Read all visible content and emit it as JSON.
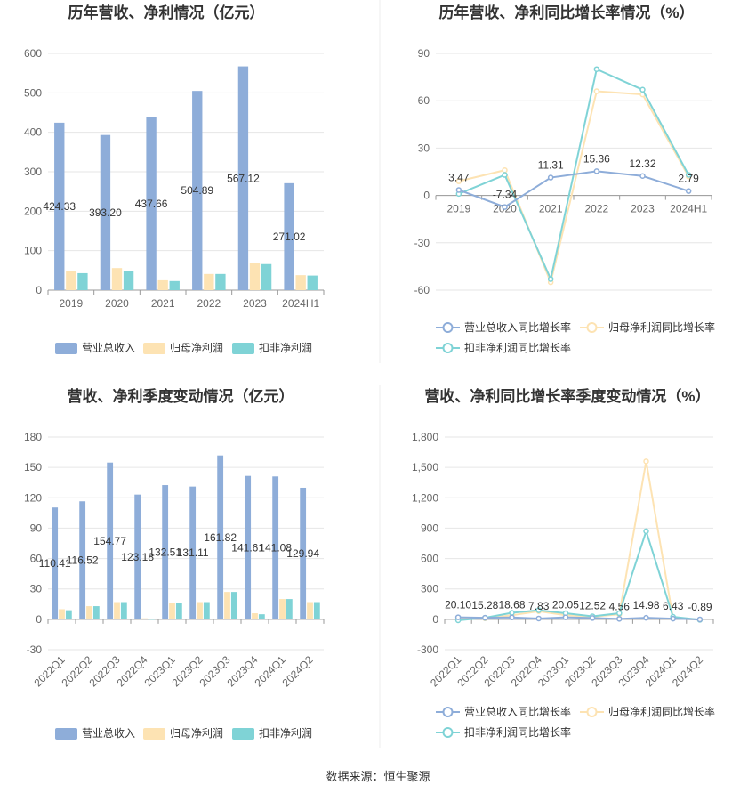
{
  "colors": {
    "revenue": "#8eadd9",
    "parent_profit": "#fde3b3",
    "nonrecurring_profit": "#7fd3d6",
    "revenue_line": "#8eadd9",
    "parent_line": "#fde3b3",
    "nonrecurring_line": "#7fd3d6",
    "grid": "#e6e6e6",
    "axis": "#999999",
    "tick_text": "#666666",
    "title_text": "#333333"
  },
  "legend_labels": {
    "bar": [
      "营业总收入",
      "归母净利润",
      "扣非净利润"
    ],
    "line": [
      "营业总收入同比增长率",
      "归母净利润同比增长率",
      "扣非净利润同比增长率"
    ]
  },
  "source_text": "数据来源：恒生聚源",
  "chart_data": [
    {
      "id": "annual-amounts",
      "type": "bar",
      "title": "历年营收、净利情况（亿元）",
      "categories": [
        "2019",
        "2020",
        "2021",
        "2022",
        "2023",
        "2024H1"
      ],
      "ylim": [
        0,
        600
      ],
      "yticks": [
        0,
        100,
        200,
        300,
        400,
        500,
        600
      ],
      "ytick_labels": [
        "0",
        "100",
        "200",
        "300",
        "400",
        "500",
        "600"
      ],
      "grid": true,
      "legend_position": "bottom",
      "series": [
        {
          "name": "营业总收入",
          "values": [
            424.33,
            393.2,
            437.66,
            504.89,
            567.12,
            271.02
          ],
          "labels": [
            "424.33",
            "393.20",
            "437.66",
            "504.89",
            "567.12",
            "271.02"
          ]
        },
        {
          "name": "归母净利润",
          "values": [
            48,
            56,
            25,
            41,
            68,
            38
          ]
        },
        {
          "name": "扣非净利润",
          "values": [
            43,
            49,
            23,
            41,
            66,
            37
          ]
        }
      ]
    },
    {
      "id": "annual-growth",
      "type": "line",
      "title": "历年营收、净利同比增长率情况（%）",
      "categories": [
        "2019",
        "2020",
        "2021",
        "2022",
        "2023",
        "2024H1"
      ],
      "ylim": [
        -60,
        90
      ],
      "yticks": [
        -60,
        -30,
        0,
        30,
        60,
        90
      ],
      "ytick_labels": [
        "-60",
        "-30",
        "0",
        "30",
        "60",
        "90"
      ],
      "grid": true,
      "legend_position": "bottom",
      "series": [
        {
          "name": "营业总收入同比增长率",
          "values": [
            3.47,
            -7.34,
            11.31,
            15.36,
            12.32,
            2.79
          ],
          "labels": [
            "3.47",
            "-7.34",
            "11.31",
            "15.36",
            "12.32",
            "2.79"
          ]
        },
        {
          "name": "归母净利润同比增长率",
          "values": [
            9,
            16,
            -55,
            66,
            64,
            12
          ]
        },
        {
          "name": "扣非净利润同比增长率",
          "values": [
            1,
            13,
            -53,
            80,
            67,
            13
          ]
        }
      ]
    },
    {
      "id": "quarterly-amounts",
      "type": "bar",
      "title": "营收、净利季度变动情况（亿元）",
      "categories": [
        "2022Q1",
        "2022Q2",
        "2022Q3",
        "2022Q4",
        "2023Q1",
        "2023Q2",
        "2023Q3",
        "2023Q4",
        "2024Q1",
        "2024Q2"
      ],
      "ylim": [
        -30,
        180
      ],
      "yticks": [
        -30,
        0,
        30,
        60,
        90,
        120,
        150,
        180
      ],
      "ytick_labels": [
        "-30",
        "0",
        "30",
        "60",
        "90",
        "120",
        "150",
        "180"
      ],
      "grid": true,
      "legend_position": "bottom",
      "series": [
        {
          "name": "营业总收入",
          "values": [
            110.41,
            116.52,
            154.77,
            123.18,
            132.51,
            131.11,
            161.82,
            141.61,
            141.08,
            129.94
          ],
          "labels": [
            "110.41",
            "116.52",
            "154.77",
            "123.18",
            "132.51",
            "131.11",
            "161.82",
            "141.61",
            "141.08",
            "129.94"
          ]
        },
        {
          "name": "归母净利润",
          "values": [
            10,
            13,
            17,
            1,
            16,
            17,
            27,
            6,
            20,
            17
          ]
        },
        {
          "name": "扣非净利润",
          "values": [
            9,
            13,
            17,
            0,
            16,
            17,
            27,
            5,
            20,
            17
          ]
        }
      ]
    },
    {
      "id": "quarterly-growth",
      "type": "line",
      "title": "营收、净利同比增长率季度变动情况（%）",
      "categories": [
        "2022Q1",
        "2022Q2",
        "2022Q3",
        "2022Q4",
        "2023Q1",
        "2023Q2",
        "2023Q3",
        "2023Q4",
        "2024Q1",
        "2024Q2"
      ],
      "ylim": [
        -300,
        1800
      ],
      "yticks": [
        -300,
        0,
        300,
        600,
        900,
        1200,
        1500,
        1800
      ],
      "ytick_labels": [
        "-300",
        "0",
        "300",
        "600",
        "900",
        "1,200",
        "1,500",
        "1,800"
      ],
      "grid": true,
      "legend_position": "bottom",
      "series": [
        {
          "name": "营业总收入同比增长率",
          "values": [
            20.1,
            15.28,
            18.68,
            7.83,
            20.05,
            12.52,
            4.56,
            14.98,
            6.43,
            -0.89
          ],
          "labels": [
            "20.10",
            "15.28",
            "18.68",
            "7.83",
            "20.05",
            "12.52",
            "4.56",
            "14.98",
            "6.43",
            "-0.89"
          ]
        },
        {
          "name": "归母净利润同比增长率",
          "values": [
            5,
            10,
            40,
            80,
            40,
            25,
            50,
            1560,
            10,
            -5
          ]
        },
        {
          "name": "扣非净利润同比增长率",
          "values": [
            -10,
            15,
            65,
            90,
            60,
            30,
            60,
            870,
            25,
            -5
          ]
        }
      ]
    }
  ]
}
